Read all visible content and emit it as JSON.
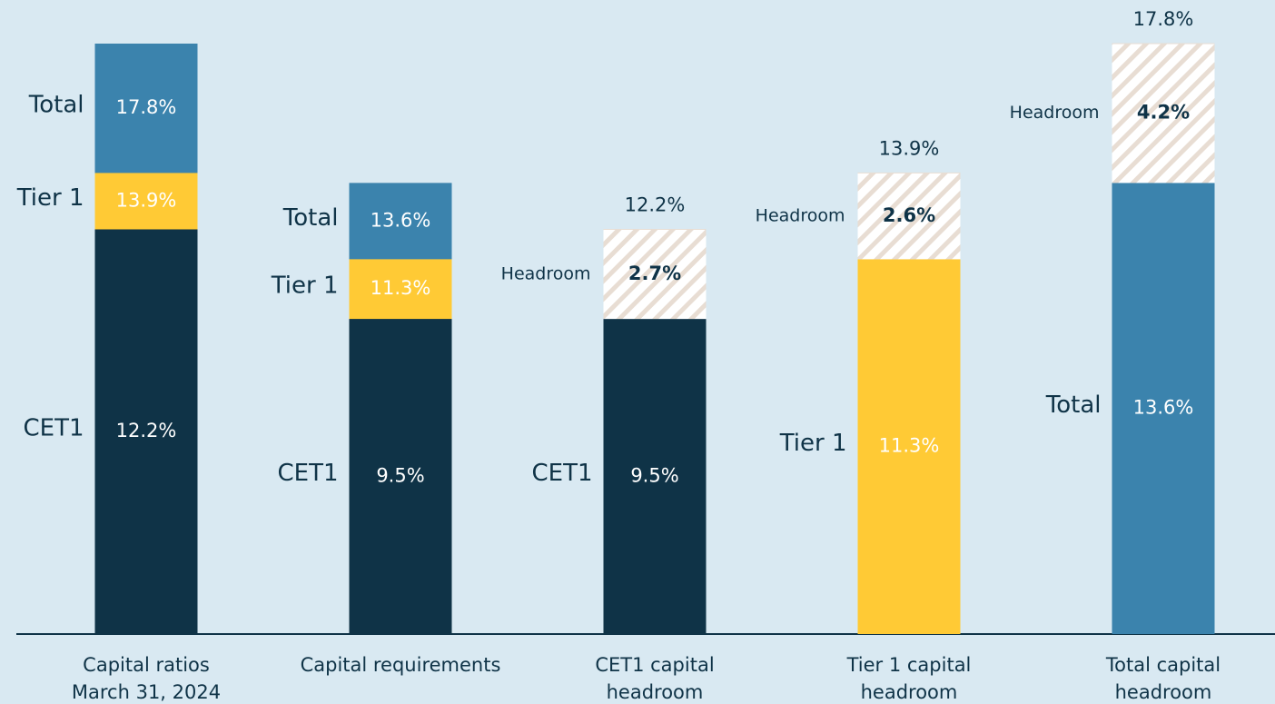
{
  "chart_data": {
    "type": "layered-bar",
    "ylim": [
      0,
      17.8
    ],
    "colors": {
      "CET1": "#0f3347",
      "Tier 1": "#ffca35",
      "Total": "#3b83ad"
    },
    "columns": [
      {
        "category": [
          "Capital ratios",
          "March 31, 2024"
        ],
        "layers": [
          {
            "name": "Total",
            "value": 17.8,
            "label": "17.8%"
          },
          {
            "name": "Tier 1",
            "value": 13.9,
            "label": "13.9%"
          },
          {
            "name": "CET1",
            "value": 12.2,
            "label": "12.2%"
          }
        ]
      },
      {
        "category": [
          "Capital requirements"
        ],
        "layers": [
          {
            "name": "Total",
            "value": 13.6,
            "label": "13.6%"
          },
          {
            "name": "Tier 1",
            "value": 11.3,
            "label": "11.3%"
          },
          {
            "name": "CET1",
            "value": 9.5,
            "label": "9.5%"
          }
        ]
      },
      {
        "category": [
          "CET1 capital",
          "headroom"
        ],
        "layers": [
          {
            "name": "CET1",
            "value": 9.5,
            "label": "9.5%"
          }
        ],
        "headroom": {
          "name": "Headroom",
          "value": 2.7,
          "label": "2.7%"
        },
        "total": 12.2,
        "total_label": "12.2%"
      },
      {
        "category": [
          "Tier 1 capital",
          "headroom"
        ],
        "layers": [
          {
            "name": "Tier 1",
            "value": 11.3,
            "label": "11.3%"
          }
        ],
        "headroom": {
          "name": "Headroom",
          "value": 2.6,
          "label": "2.6%"
        },
        "total": 13.9,
        "total_label": "13.9%"
      },
      {
        "category": [
          "Total capital",
          "headroom"
        ],
        "layers": [
          {
            "name": "Total",
            "value": 13.6,
            "label": "13.6%"
          }
        ],
        "headroom": {
          "name": "Headroom",
          "value": 4.2,
          "label": "4.2%"
        },
        "total": 17.8,
        "total_label": "17.8%"
      }
    ]
  }
}
